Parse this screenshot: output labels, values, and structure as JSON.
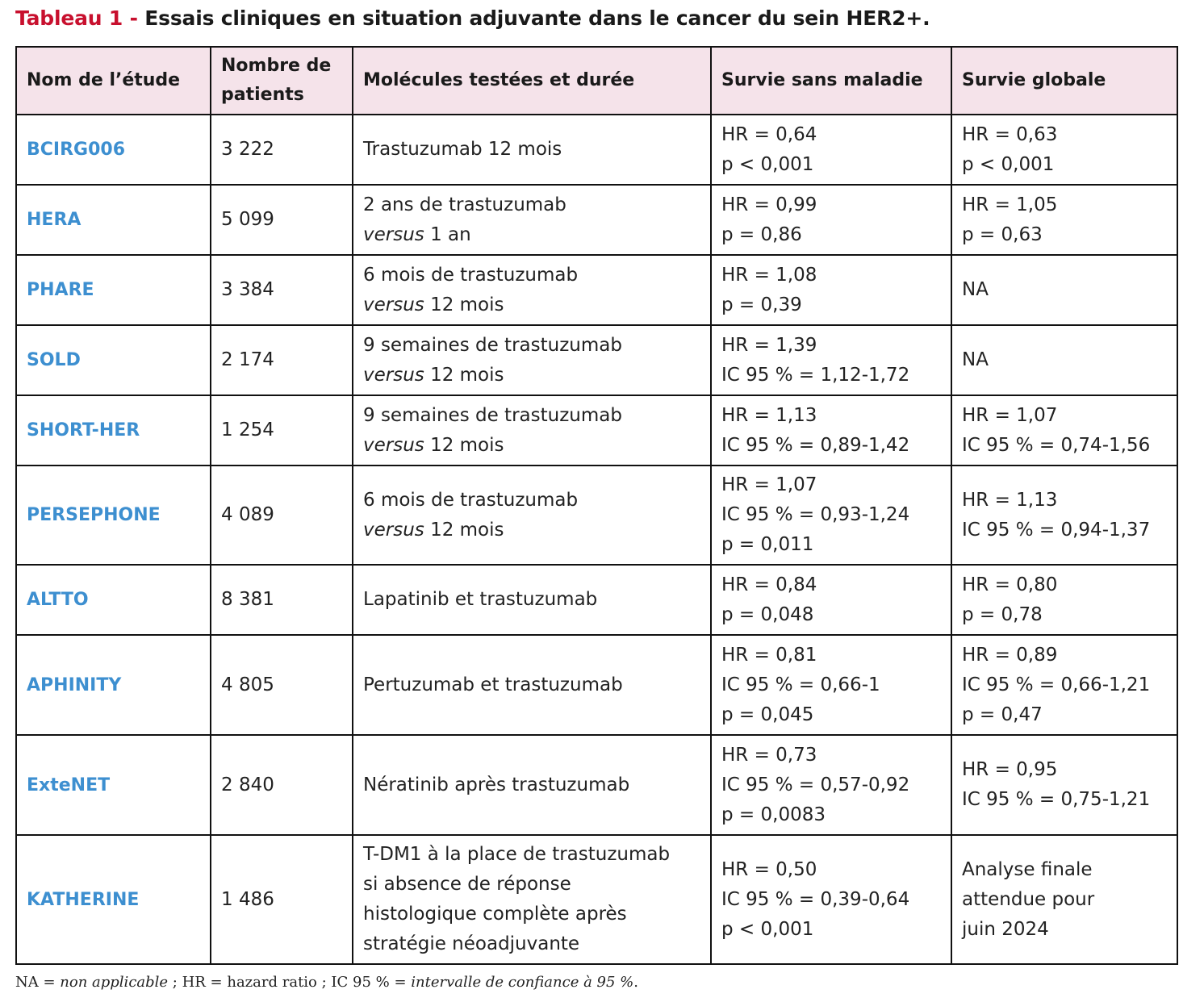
{
  "title": {
    "label": "Tableau 1 -",
    "text": "Essais cliniques en situation adjuvante dans le cancer du sein HER2+."
  },
  "headers": [
    "Nom de l’étude",
    "Nombre de patients",
    "Molécules testées et durée",
    "Survie sans maladie",
    "Survie globale"
  ],
  "rows": [
    {
      "study": "BCIRG006",
      "patients": "3 222",
      "molecules": [
        {
          "plain": "Trastuzumab 12 mois"
        }
      ],
      "dfs": [
        "HR = 0,64",
        "p < 0,001"
      ],
      "os": [
        "HR = 0,63",
        "p < 0,001"
      ]
    },
    {
      "study": "HERA",
      "patients": "5 099",
      "molecules": [
        {
          "plain": "2 ans de trastuzumab"
        },
        {
          "it": "versus",
          "plain": " 1 an"
        }
      ],
      "dfs": [
        "HR = 0,99",
        "p = 0,86"
      ],
      "os": [
        "HR = 1,05",
        "p = 0,63"
      ]
    },
    {
      "study": "PHARE",
      "patients": "3 384",
      "molecules": [
        {
          "plain": "6 mois de trastuzumab"
        },
        {
          "it": "versus",
          "plain": " 12 mois"
        }
      ],
      "dfs": [
        "HR = 1,08",
        "p = 0,39"
      ],
      "os": [
        "NA"
      ]
    },
    {
      "study": "SOLD",
      "patients": "2 174",
      "molecules": [
        {
          "plain": "9 semaines de trastuzumab"
        },
        {
          "it": "versus",
          "plain": " 12 mois"
        }
      ],
      "dfs": [
        "HR = 1,39",
        "IC 95 % = 1,12-1,72"
      ],
      "os": [
        "NA"
      ]
    },
    {
      "study": "SHORT-HER",
      "patients": "1 254",
      "molecules": [
        {
          "plain": "9 semaines de trastuzumab"
        },
        {
          "it": "versus",
          "plain": " 12 mois"
        }
      ],
      "dfs": [
        "HR = 1,13",
        "IC 95 % = 0,89-1,42"
      ],
      "os": [
        "HR = 1,07",
        "IC 95 % = 0,74-1,56"
      ]
    },
    {
      "study": "PERSEPHONE",
      "patients": "4 089",
      "molecules": [
        {
          "plain": "6 mois de trastuzumab"
        },
        {
          "it": "versus",
          "plain": " 12 mois"
        }
      ],
      "dfs": [
        "HR = 1,07",
        "IC 95 % = 0,93-1,24",
        "p = 0,011"
      ],
      "os": [
        "HR = 1,13",
        "IC 95 % = 0,94-1,37"
      ]
    },
    {
      "study": "ALTTO",
      "patients": "8 381",
      "molecules": [
        {
          "plain": "Lapatinib et trastuzumab"
        }
      ],
      "dfs": [
        "HR = 0,84",
        "p = 0,048"
      ],
      "os": [
        "HR = 0,80",
        "p = 0,78"
      ]
    },
    {
      "study": "APHINITY",
      "patients": "4 805",
      "molecules": [
        {
          "plain": "Pertuzumab et trastuzumab"
        }
      ],
      "dfs": [
        "HR = 0,81",
        "IC 95 % = 0,66-1",
        "p = 0,045"
      ],
      "os": [
        "HR = 0,89",
        "IC 95 % = 0,66-1,21",
        "p = 0,47"
      ]
    },
    {
      "study": "ExteNET",
      "patients": "2 840",
      "molecules": [
        {
          "plain": "Nératinib après trastuzumab"
        }
      ],
      "dfs": [
        "HR = 0,73",
        "IC 95 % = 0,57-0,92",
        "p = 0,0083"
      ],
      "os": [
        "HR = 0,95",
        "IC 95 % = 0,75-1,21"
      ]
    },
    {
      "study": "KATHERINE",
      "patients": "1 486",
      "molecules": [
        {
          "plain": "T-DM1 à la place de trastuzumab"
        },
        {
          "plain": "si absence de réponse"
        },
        {
          "plain": "histologique complète après"
        },
        {
          "plain": "stratégie néoadjuvante"
        }
      ],
      "dfs": [
        "HR = 0,50",
        "IC 95 % = 0,39-0,64",
        "p < 0,001"
      ],
      "os": [
        "Analyse finale",
        "attendue pour",
        "juin 2024"
      ]
    }
  ],
  "footnote": [
    {
      "plain": "NA = "
    },
    {
      "it": "non applicable"
    },
    {
      "plain": " ; HR = hazard ratio ; IC 95 % = "
    },
    {
      "it": "intervalle de confiance à 95 %"
    },
    {
      "plain": "."
    }
  ]
}
